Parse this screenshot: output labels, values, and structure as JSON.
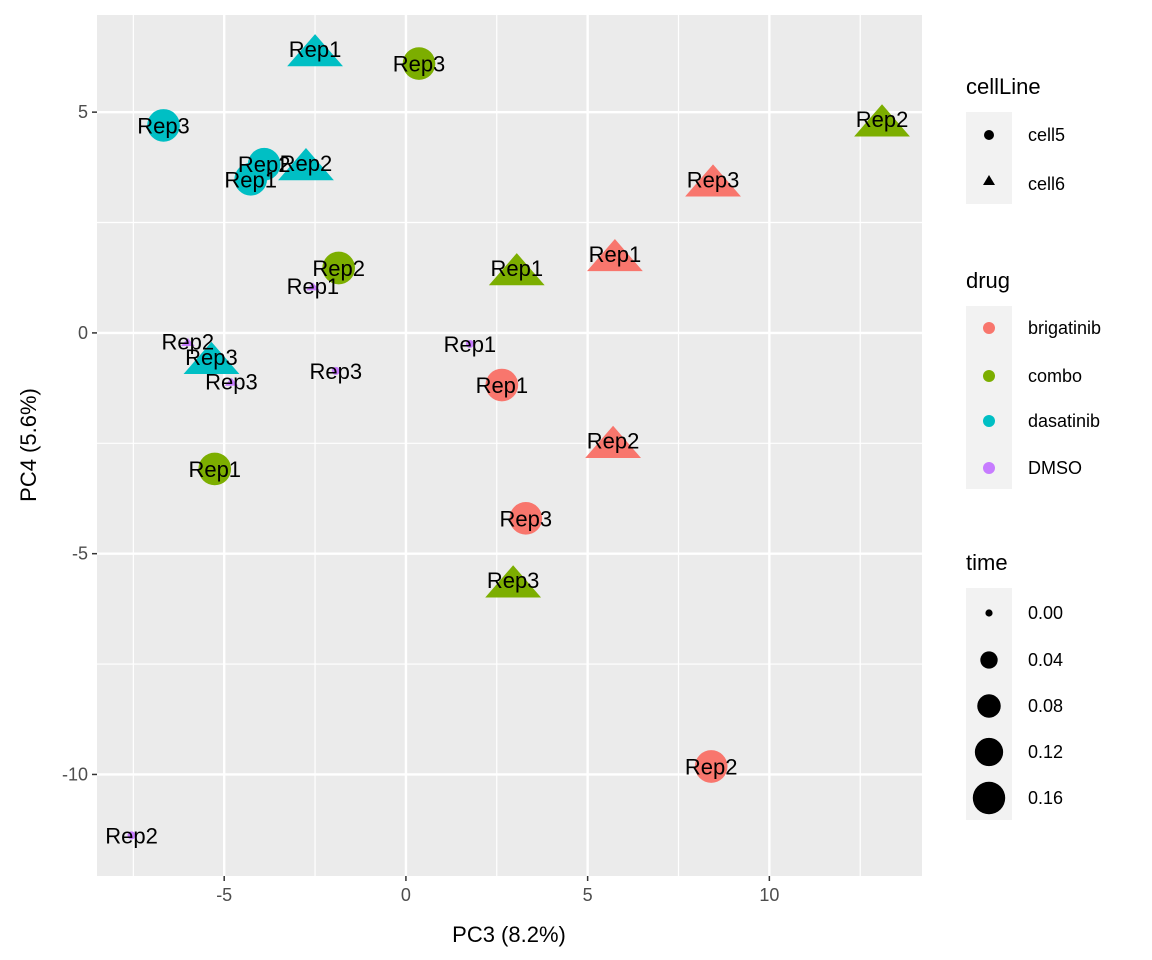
{
  "chart_data": {
    "type": "scatter",
    "title": "",
    "xlabel": "PC3 (8.2%)",
    "ylabel": "PC4 (5.6%)",
    "xlim": [
      -8.5,
      14.2
    ],
    "ylim": [
      -12.3,
      7.2
    ],
    "xticks": [
      -5,
      0,
      5,
      10
    ],
    "xtick_labels": [
      "-5",
      "0",
      "5",
      "10"
    ],
    "yticks": [
      5,
      0,
      -5,
      -10
    ],
    "ytick_labels": [
      "5",
      "0",
      "-5",
      "-10"
    ],
    "grid": true,
    "legend_placement": "right",
    "drug_colors": {
      "brigatinib": "#F8766D",
      "combo": "#7CAE00",
      "dasatinib": "#00BFC4",
      "DMSO": "#C77CFF"
    },
    "legends": {
      "cellLine": {
        "title": "cellLine",
        "items": [
          {
            "label": "cell5",
            "shape": "circle"
          },
          {
            "label": "cell6",
            "shape": "triangle"
          }
        ]
      },
      "drug": {
        "title": "drug",
        "items": [
          {
            "label": "brigatinib",
            "color": "#F8766D"
          },
          {
            "label": "combo",
            "color": "#7CAE00"
          },
          {
            "label": "dasatinib",
            "color": "#00BFC4"
          },
          {
            "label": "DMSO",
            "color": "#C77CFF"
          }
        ]
      },
      "time": {
        "title": "time",
        "items": [
          {
            "label": "0.00",
            "value": 0
          },
          {
            "label": "0.04",
            "value": 0.04
          },
          {
            "label": "0.08",
            "value": 0.08
          },
          {
            "label": "0.12",
            "value": 0.12
          },
          {
            "label": "0.16",
            "value": 0.16
          }
        ]
      }
    },
    "points": [
      {
        "x": -2.5,
        "y": 6.43,
        "drug": "dasatinib",
        "cellLine": "cell6",
        "time": 0.13,
        "label": "Rep1"
      },
      {
        "x": 0.36,
        "y": 6.1,
        "drug": "combo",
        "cellLine": "cell5",
        "time": 0.13,
        "label": "Rep3"
      },
      {
        "x": -6.67,
        "y": 4.7,
        "drug": "dasatinib",
        "cellLine": "cell5",
        "time": 0.13,
        "label": "Rep3"
      },
      {
        "x": 13.1,
        "y": 4.84,
        "drug": "combo",
        "cellLine": "cell6",
        "time": 0.13,
        "label": "Rep2"
      },
      {
        "x": -3.9,
        "y": 3.82,
        "drug": "dasatinib",
        "cellLine": "cell5",
        "time": 0.13,
        "label": "Rep2"
      },
      {
        "x": -2.75,
        "y": 3.85,
        "drug": "dasatinib",
        "cellLine": "cell6",
        "time": 0.13,
        "label": "Rep2"
      },
      {
        "x": -4.27,
        "y": 3.48,
        "drug": "dasatinib",
        "cellLine": "cell5",
        "time": 0.13,
        "label": "Rep1"
      },
      {
        "x": 8.45,
        "y": 3.48,
        "drug": "brigatinib",
        "cellLine": "cell6",
        "time": 0.13,
        "label": "Rep3"
      },
      {
        "x": 5.75,
        "y": 1.79,
        "drug": "brigatinib",
        "cellLine": "cell6",
        "time": 0.13,
        "label": "Rep1"
      },
      {
        "x": 3.05,
        "y": 1.47,
        "drug": "combo",
        "cellLine": "cell6",
        "time": 0.13,
        "label": "Rep1"
      },
      {
        "x": -1.85,
        "y": 1.47,
        "drug": "combo",
        "cellLine": "cell5",
        "time": 0.13,
        "label": "Rep2"
      },
      {
        "x": -2.56,
        "y": 1.06,
        "drug": "DMSO",
        "cellLine": "cell6",
        "time": 0,
        "label": "Rep1"
      },
      {
        "x": -6.0,
        "y": -0.2,
        "drug": "DMSO",
        "cellLine": "cell6",
        "time": 0,
        "label": "Rep2"
      },
      {
        "x": -5.35,
        "y": -0.54,
        "drug": "dasatinib",
        "cellLine": "cell6",
        "time": 0.13,
        "label": "Rep3"
      },
      {
        "x": -4.8,
        "y": -1.1,
        "drug": "DMSO",
        "cellLine": "cell6",
        "time": 0,
        "label": "Rep3"
      },
      {
        "x": -1.93,
        "y": -0.86,
        "drug": "DMSO",
        "cellLine": "cell5",
        "time": 0,
        "label": "Rep3"
      },
      {
        "x": 1.76,
        "y": -0.25,
        "drug": "DMSO",
        "cellLine": "cell5",
        "time": 0,
        "label": "Rep1"
      },
      {
        "x": 2.64,
        "y": -1.18,
        "drug": "brigatinib",
        "cellLine": "cell5",
        "time": 0.13,
        "label": "Rep1"
      },
      {
        "x": 5.7,
        "y": -2.44,
        "drug": "brigatinib",
        "cellLine": "cell6",
        "time": 0.13,
        "label": "Rep2"
      },
      {
        "x": -5.26,
        "y": -3.08,
        "drug": "combo",
        "cellLine": "cell5",
        "time": 0.13,
        "label": "Rep1"
      },
      {
        "x": 3.3,
        "y": -4.2,
        "drug": "brigatinib",
        "cellLine": "cell5",
        "time": 0.13,
        "label": "Rep3"
      },
      {
        "x": 2.95,
        "y": -5.6,
        "drug": "combo",
        "cellLine": "cell6",
        "time": 0.13,
        "label": "Rep3"
      },
      {
        "x": 8.4,
        "y": -9.82,
        "drug": "brigatinib",
        "cellLine": "cell5",
        "time": 0.13,
        "label": "Rep2"
      },
      {
        "x": -7.55,
        "y": -11.38,
        "drug": "DMSO",
        "cellLine": "cell5",
        "time": 0,
        "label": "Rep2"
      }
    ]
  }
}
